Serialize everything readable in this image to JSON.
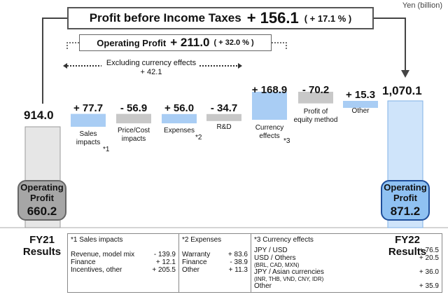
{
  "unit": "Yen (billion)",
  "pbt": {
    "label": "Profit before Income Taxes",
    "value": "+ 156.1",
    "pct": "( + 17.1 % )"
  },
  "op": {
    "label": "Operating Profit",
    "value": "+ 211.0",
    "pct": "( + 32.0 % )"
  },
  "fx_note": {
    "line1": "Excluding currency effects",
    "line2": "+ 42.1"
  },
  "fy21": {
    "value_label": "914.0",
    "pill_label_1": "Operating",
    "pill_label_2": "Profit",
    "pill_value": "660.2",
    "results_1": "FY21",
    "results_2": "Results"
  },
  "fy22": {
    "value_label": "1,070.1",
    "pill_label_1": "Operating",
    "pill_label_2": "Profit",
    "pill_value": "871.2",
    "results_1": "FY22",
    "results_2": "Results"
  },
  "steps": [
    {
      "delta": "+ 77.7",
      "cat1": "Sales",
      "cat2": "impacts",
      "foot": "*1"
    },
    {
      "delta": "- 56.9",
      "cat1": "Price/Cost",
      "cat2": "impacts",
      "foot": ""
    },
    {
      "delta": "+ 56.0",
      "cat1": "Expenses",
      "cat2": "",
      "foot": "*2"
    },
    {
      "delta": "- 34.7",
      "cat1": "R&D",
      "cat2": "",
      "foot": ""
    },
    {
      "delta": "+ 168.9",
      "cat1": "Currency",
      "cat2": "effects",
      "foot": "*3"
    },
    {
      "delta": "- 70.2",
      "cat1": "Profit of",
      "cat2": "equity method",
      "foot": ""
    },
    {
      "delta": "+ 15.3",
      "cat1": "Other",
      "cat2": "",
      "foot": ""
    }
  ],
  "notes": {
    "sales": {
      "title": "*1 Sales impacts",
      "rows": [
        {
          "label": "Revenue, model mix",
          "value": "- 139.9"
        },
        {
          "label": "Finance",
          "value": "+ 12.1"
        },
        {
          "label": "Incentives, other",
          "value": "+ 205.5"
        }
      ]
    },
    "expenses": {
      "title": "*2 Expenses",
      "rows": [
        {
          "label": "Warranty",
          "value": "+ 83.6"
        },
        {
          "label": "Finance",
          "value": "- 38.9"
        },
        {
          "label": "Other",
          "value": "+ 11.3"
        }
      ]
    },
    "currency": {
      "title": "*3 Currency effects",
      "rows": [
        {
          "label": "JPY / USD",
          "sub": "",
          "value": "+ 76.5"
        },
        {
          "label": "USD / Others",
          "sub": "(BRL, CAD, MXN)",
          "value": "+ 20.5"
        },
        {
          "label": "JPY / Asian currencies",
          "sub": "(INR, THB, VND, CNY, IDR)",
          "value": "+ 36.0"
        },
        {
          "label": "Other",
          "sub": "",
          "value": "+ 35.9"
        }
      ]
    }
  },
  "colors": {
    "increase": "#a9cdf4",
    "decrease": "#c8c8c8",
    "fy21_bar": "#e6e6e6",
    "fy22_bar": "#cfe4fa"
  },
  "chart_data": {
    "type": "bar",
    "subtype": "waterfall",
    "categories": [
      "FY21 Results",
      "Sales impacts",
      "Price/Cost impacts",
      "Expenses",
      "R&D",
      "Currency effects",
      "Profit of equity method",
      "Other",
      "FY22 Results"
    ],
    "values": [
      914.0,
      77.7,
      -56.9,
      56.0,
      -34.7,
      168.9,
      -70.2,
      15.3,
      1070.1
    ],
    "measure": [
      "total",
      "relative",
      "relative",
      "relative",
      "relative",
      "relative",
      "relative",
      "relative",
      "total"
    ],
    "title": "Profit before Income Taxes + 156.1 ( + 17.1 % )",
    "operating_profit": {
      "FY21": 660.2,
      "FY22": 871.2,
      "change": 211.0,
      "change_pct": 32.0
    },
    "excluding_currency_effects": 42.1
  }
}
